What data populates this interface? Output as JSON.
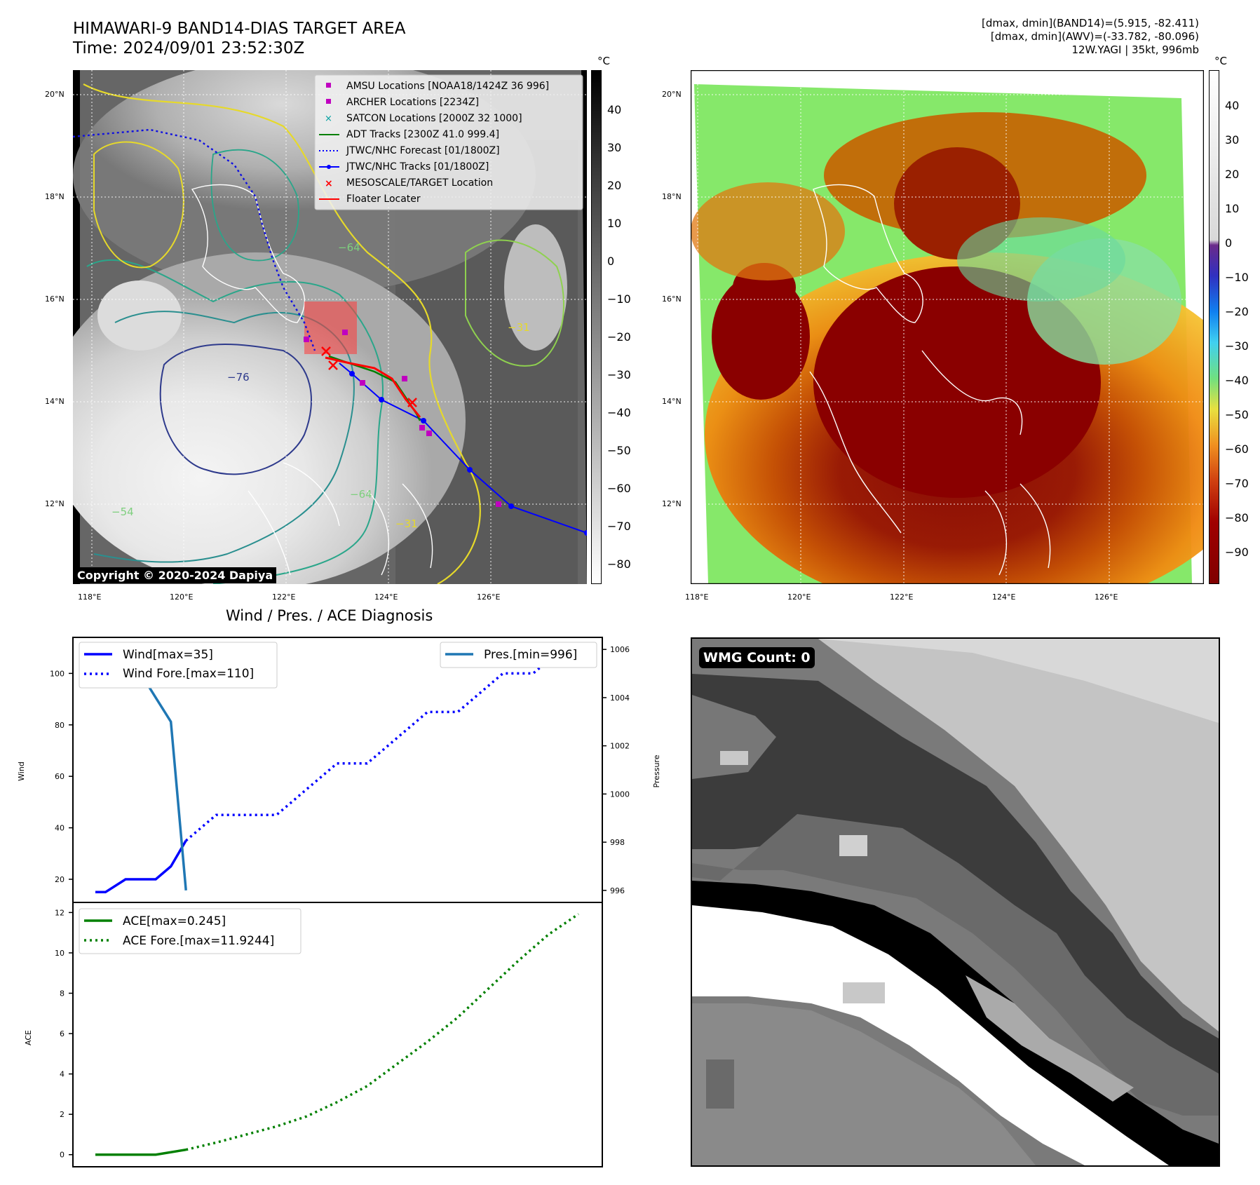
{
  "header": {
    "title_line1": "HIMAWARI-9 BAND14-DIAS TARGET AREA",
    "title_line2": "Time: 2024/09/01 23:52:30Z",
    "info_line1": "[dmax, dmin](BAND14)=(5.915, -82.411)",
    "info_line2": "[dmax, dmin](AWV)=(-33.782, -80.096)",
    "info_line3": "12W.YAGI | 35kt, 996mb"
  },
  "map": {
    "lat_labels": [
      "20°N",
      "18°N",
      "16°N",
      "14°N",
      "12°N"
    ],
    "lon_labels": [
      "118°E",
      "120°E",
      "122°E",
      "124°E",
      "126°E"
    ],
    "colorbar_unit": "°C",
    "colorbar_ticks": [
      "40",
      "30",
      "20",
      "10",
      "0",
      "−10",
      "−20",
      "−30",
      "−40",
      "−50",
      "−60",
      "−70",
      "−80"
    ],
    "awv_colorbar_ticks": [
      "40",
      "30",
      "20",
      "10",
      "0",
      "−10",
      "−20",
      "−30",
      "−40",
      "−50",
      "−60",
      "−70",
      "−80",
      "−90"
    ],
    "copyright": "Copyright © 2020-2024 Dapiya",
    "legend": [
      {
        "label": "AMSU Locations [NOAA18/1424Z 36 996]",
        "color": "#c000c0"
      },
      {
        "label": "ARCHER Locations [2234Z]",
        "color": "#c000c0"
      },
      {
        "label": "SATCON Locations [2000Z 32 1000]",
        "color": "#00a0a0"
      },
      {
        "label": "ADT Tracks [2300Z 41.0 999.4]",
        "color": "#008000"
      },
      {
        "label": "JTWC/NHC Forecast [01/1800Z]",
        "color": "#0000ff"
      },
      {
        "label": "JTWC/NHC Tracks [01/1800Z]",
        "color": "#0000ff"
      },
      {
        "label": "MESOSCALE/TARGET Location",
        "color": "#ff0000"
      },
      {
        "label": "Floater Locater",
        "color": "#ff0000"
      }
    ],
    "contour_labels": [
      "-54",
      "-64",
      "-76",
      "-54",
      "-64",
      "-31",
      "-54",
      "-31"
    ]
  },
  "diag": {
    "title": "Wind / Pres. / ACE Diagnosis",
    "left_label": "Wind",
    "right_label": "Pressure",
    "ace_label": "ACE",
    "wind_legend": [
      "Wind[max=35]",
      "Wind Fore.[max=110]"
    ],
    "pres_legend": [
      "Pres.[min=996]"
    ],
    "ace_legend": [
      "ACE[max=0.245]",
      "ACE Fore.[max=11.9244]"
    ],
    "wind_ticks": [
      "100",
      "80",
      "60",
      "40",
      "20"
    ],
    "pres_ticks": [
      "1006",
      "1004",
      "1002",
      "1000",
      "998",
      "996"
    ],
    "ace_ticks": [
      "12",
      "10",
      "8",
      "6",
      "4",
      "2",
      "0"
    ]
  },
  "wmg": {
    "label": "WMG Count: 0"
  },
  "chart_data": [
    {
      "type": "line",
      "title": "Wind / Pres. / ACE Diagnosis",
      "ylabel": "Wind",
      "y2label": "Pressure",
      "ylim": [
        11,
        114
      ],
      "y2lim": [
        995.5,
        1006.5
      ],
      "series": [
        {
          "name": "Wind[max=35]",
          "axis": "left",
          "x": [
            0,
            2,
            6,
            9,
            12,
            15,
            18
          ],
          "y": [
            15,
            15,
            20,
            20,
            20,
            25,
            35
          ],
          "color": "#0000ff",
          "style": "solid"
        },
        {
          "name": "Wind Fore.[max=110]",
          "axis": "left",
          "x": [
            18,
            21,
            24,
            27,
            30,
            33,
            36,
            39,
            42,
            45,
            48,
            51,
            54,
            57,
            60,
            63,
            66,
            69,
            72,
            75,
            78,
            81,
            84,
            87,
            90,
            93,
            96
          ],
          "y": [
            35,
            40,
            45,
            45,
            45,
            45,
            45,
            50,
            55,
            60,
            65,
            65,
            65,
            70,
            75,
            80,
            85,
            85,
            85,
            90,
            95,
            100,
            100,
            100,
            105,
            110,
            110
          ],
          "color": "#0000ff",
          "style": "dotted"
        },
        {
          "name": "Pres.[min=996]",
          "axis": "right",
          "x": [
            0,
            3,
            6,
            9,
            12,
            15,
            18
          ],
          "y": [
            1006,
            1006,
            1005,
            1005,
            1004,
            1003,
            996
          ],
          "color": "#1f77b4",
          "style": "solid"
        }
      ]
    },
    {
      "type": "line",
      "ylabel": "ACE",
      "ylim": [
        -0.6,
        12.5
      ],
      "series": [
        {
          "name": "ACE[max=0.245]",
          "x": [
            0,
            6,
            12,
            18
          ],
          "y": [
            0,
            0,
            0,
            0.245
          ],
          "color": "#008000",
          "style": "solid"
        },
        {
          "name": "ACE Fore.[max=11.9244]",
          "x": [
            18,
            24,
            30,
            36,
            42,
            48,
            54,
            60,
            66,
            72,
            78,
            84,
            90,
            96
          ],
          "y": [
            0.245,
            0.6,
            1.0,
            1.4,
            1.9,
            2.6,
            3.4,
            4.5,
            5.6,
            6.8,
            8.2,
            9.6,
            10.9,
            11.9244
          ],
          "color": "#008000",
          "style": "dotted"
        }
      ]
    }
  ]
}
